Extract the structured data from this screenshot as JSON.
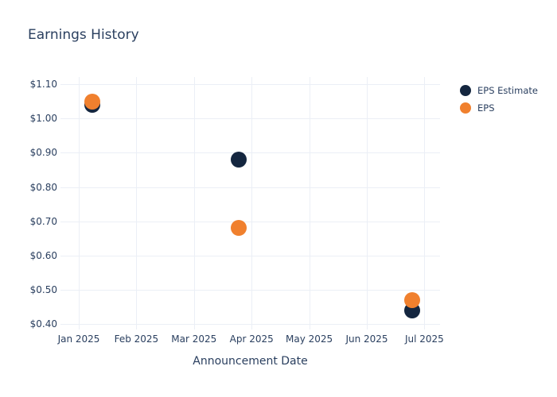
{
  "title": "Earnings History",
  "colors": {
    "eps_estimate": "#14263F",
    "eps": "#F0802E",
    "text": "#2A3F5F",
    "grid": "#EBEFF6",
    "background": "#FFFFFF"
  },
  "legend": {
    "items": [
      {
        "label": "EPS Estimate"
      },
      {
        "label": "EPS"
      }
    ]
  },
  "chart_data": {
    "type": "scatter",
    "title": "Earnings History",
    "xlabel": "Announcement Date",
    "ylabel": "",
    "grid": true,
    "legend_position": "right",
    "x_tick_labels": [
      "Jan 2025",
      "Feb 2025",
      "Mar 2025",
      "Apr 2025",
      "May 2025",
      "Jun 2025",
      "Jul 2025"
    ],
    "y_ticks": [
      {
        "label": "$1.10",
        "value": 1.1
      },
      {
        "label": "$1.00",
        "value": 1.0
      },
      {
        "label": "$0.90",
        "value": 0.9
      },
      {
        "label": "$0.80",
        "value": 0.8
      },
      {
        "label": "$0.70",
        "value": 0.7
      },
      {
        "label": "$0.60",
        "value": 0.6
      },
      {
        "label": "$0.50",
        "value": 0.5
      },
      {
        "label": "$0.40",
        "value": 0.4
      }
    ],
    "ylim": [
      0.38,
      1.12
    ],
    "xlim_months": [
      -0.32,
      6.28
    ],
    "marker_size_px": 20,
    "series": [
      {
        "name": "EPS Estimate",
        "color": "#14263F",
        "points": [
          {
            "date": "2025-01-08",
            "x_month": 0.235,
            "value": 1.04
          },
          {
            "date": "2025-03-25",
            "x_month": 2.776,
            "value": 0.88
          },
          {
            "date": "2025-06-25",
            "x_month": 5.787,
            "value": 0.44
          }
        ]
      },
      {
        "name": "EPS",
        "color": "#F0802E",
        "points": [
          {
            "date": "2025-01-08",
            "x_month": 0.235,
            "value": 1.05
          },
          {
            "date": "2025-03-25",
            "x_month": 2.776,
            "value": 0.68
          },
          {
            "date": "2025-06-25",
            "x_month": 5.787,
            "value": 0.47
          }
        ]
      }
    ]
  }
}
